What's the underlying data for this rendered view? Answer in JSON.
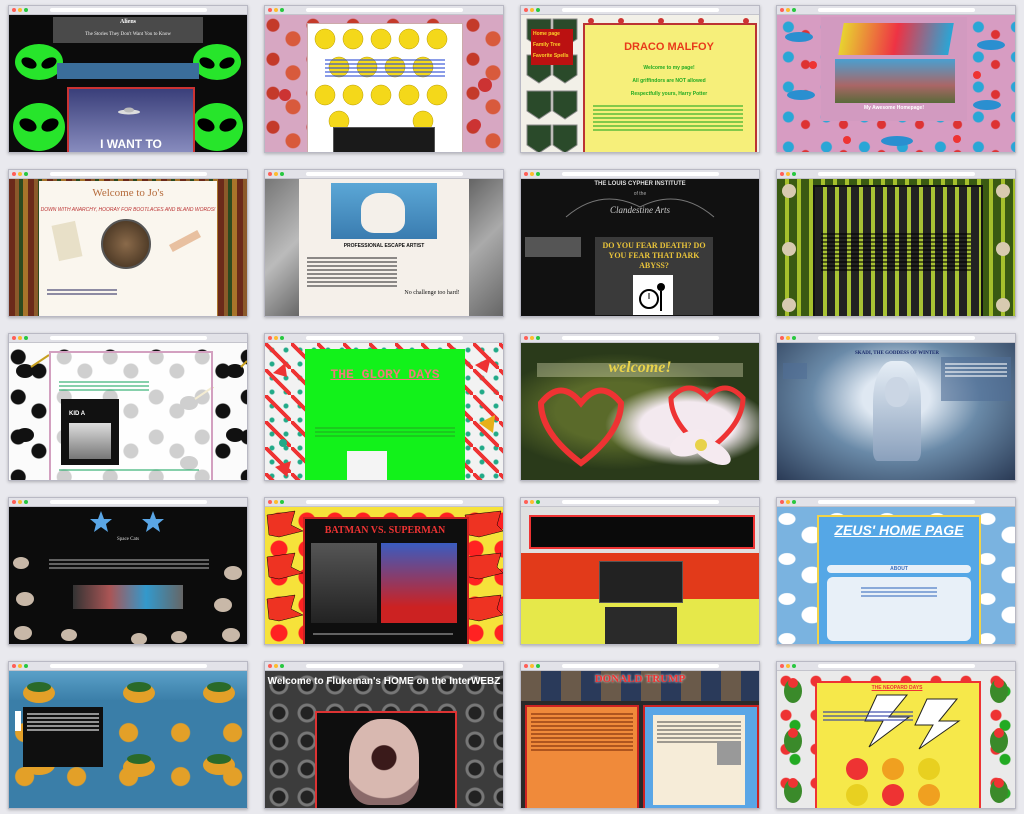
{
  "thumbs": [
    {
      "title": "Aliens",
      "subtitle": "The Stories They Don't Want You to Know",
      "caption": "I WANT TO"
    },
    {
      "title": "",
      "caption": ""
    },
    {
      "title": "DRACO MALFOY",
      "nav": [
        "Home page",
        "Family Tree",
        "Favorite Spells"
      ],
      "lines": [
        "Welcome to my page!",
        "All griffindors are NOT allowed",
        "Respectfully yours, Harry Potter"
      ]
    },
    {
      "title": "",
      "caption": "My Awesome Homepage!"
    },
    {
      "title": "Welcome to Jo's",
      "subtitle": "DOWN WITH ANARCHY, HOORAY FOR BOOTLACES AND BLAND WORDS!"
    },
    {
      "title": "PROFESSIONAL ESCAPE ARTIST",
      "aside": "No challenge too hard!"
    },
    {
      "title": "THE LOUIS CYPHER INSTITUTE",
      "subtitle": "of the",
      "cursive": "Clandestine Arts",
      "question": "DO YOU FEAR DEATH? DO YOU FEAR THAT DARK ABYSS?"
    },
    {
      "title": ""
    },
    {
      "title": "KID A"
    },
    {
      "title": "THE GLORY DAYS"
    },
    {
      "title": "welcome!"
    },
    {
      "title": "SKADI, THE GODDESS OF WINTER"
    },
    {
      "title": "Space Cats"
    },
    {
      "title": "BATMAN VS. SUPERMAN"
    },
    {
      "title": ""
    },
    {
      "title": "ZEUS' HOME PAGE",
      "section": "ABOUT"
    },
    {
      "title": ""
    },
    {
      "title": "Welcome to Flukeman's HOME on the InterWEBZ"
    },
    {
      "title": "DONALD TRUMP"
    },
    {
      "title": "THE NEOPARD DAYS"
    }
  ],
  "colors": {
    "alien_green": "#27e52b",
    "lime": "#12f21a",
    "zeus_blue": "#55a7e6",
    "pow_yellow": "#f6e23a",
    "trump_red": "#c22a2a",
    "draco_yellow": "#f6ef7a"
  }
}
